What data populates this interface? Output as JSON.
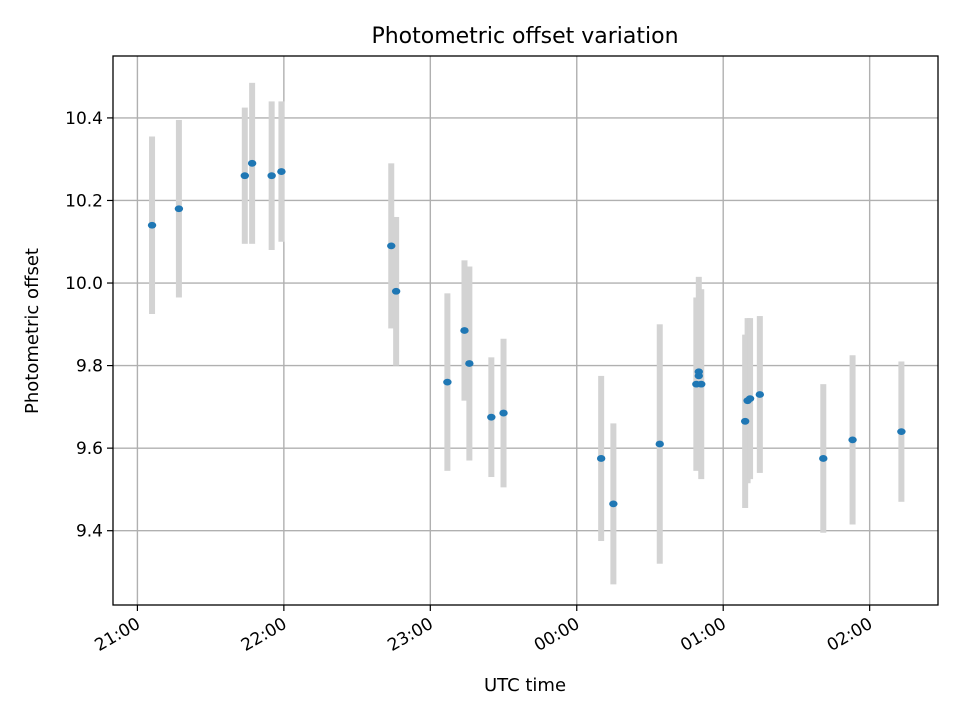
{
  "chart_data": {
    "type": "scatter",
    "title": "Photometric offset variation",
    "xlabel": "UTC time",
    "ylabel": "Photometric offset",
    "x_axis": {
      "type": "time",
      "start": "20:50",
      "end": "02:28",
      "day_break_after": "23:59",
      "ticks": [
        "21:00",
        "22:00",
        "23:00",
        "00:00",
        "01:00",
        "02:00"
      ]
    },
    "y_axis": {
      "ylim": [
        9.22,
        10.55
      ],
      "ticks": [
        "9.4",
        "9.6",
        "9.8",
        "10.0",
        "10.2",
        "10.4"
      ]
    },
    "grid": true,
    "errorbar_color": "#d3d3d3",
    "marker_color": "#1f77b4",
    "points": [
      {
        "x": "21:06",
        "y": 10.14,
        "yerr": 0.215
      },
      {
        "x": "21:17",
        "y": 10.18,
        "yerr": 0.215
      },
      {
        "x": "21:44",
        "y": 10.26,
        "yerr": 0.165
      },
      {
        "x": "21:47",
        "y": 10.29,
        "yerr": 0.195
      },
      {
        "x": "21:55",
        "y": 10.26,
        "yerr": 0.18
      },
      {
        "x": "21:59",
        "y": 10.27,
        "yerr": 0.17
      },
      {
        "x": "22:44",
        "y": 10.09,
        "yerr": 0.2
      },
      {
        "x": "22:46",
        "y": 9.98,
        "yerr": 0.18
      },
      {
        "x": "23:07",
        "y": 9.76,
        "yerr": 0.215
      },
      {
        "x": "23:14",
        "y": 9.885,
        "yerr": 0.17
      },
      {
        "x": "23:16",
        "y": 9.805,
        "yerr": 0.235
      },
      {
        "x": "23:25",
        "y": 9.675,
        "yerr": 0.145
      },
      {
        "x": "23:30",
        "y": 9.685,
        "yerr": 0.18
      },
      {
        "x": "00:10",
        "y": 9.575,
        "yerr": 0.2
      },
      {
        "x": "00:15",
        "y": 9.465,
        "yerr": 0.195
      },
      {
        "x": "00:34",
        "y": 9.61,
        "yerr": 0.29
      },
      {
        "x": "00:49",
        "y": 9.755,
        "yerr": 0.21
      },
      {
        "x": "00:50",
        "y": 9.775,
        "yerr": 0.19
      },
      {
        "x": "00:50",
        "y": 9.785,
        "yerr": 0.23
      },
      {
        "x": "00:51",
        "y": 9.755,
        "yerr": 0.23
      },
      {
        "x": "01:09",
        "y": 9.665,
        "yerr": 0.21
      },
      {
        "x": "01:10",
        "y": 9.715,
        "yerr": 0.2
      },
      {
        "x": "01:11",
        "y": 9.72,
        "yerr": 0.195
      },
      {
        "x": "01:15",
        "y": 9.73,
        "yerr": 0.19
      },
      {
        "x": "01:41",
        "y": 9.575,
        "yerr": 0.18
      },
      {
        "x": "01:53",
        "y": 9.62,
        "yerr": 0.205
      },
      {
        "x": "02:13",
        "y": 9.64,
        "yerr": 0.17
      }
    ]
  }
}
